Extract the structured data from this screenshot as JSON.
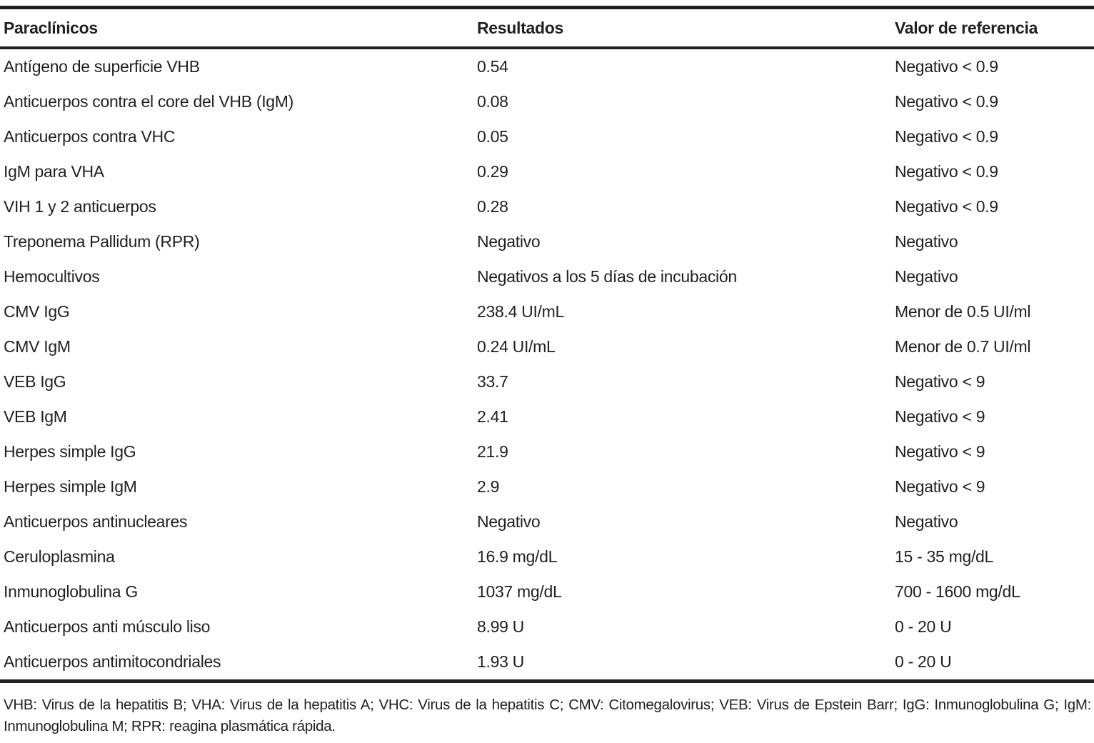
{
  "table": {
    "columns": [
      "Paraclínicos",
      "Resultados",
      "Valor de referencia"
    ],
    "rows": [
      {
        "param": "Antígeno de superficie VHB",
        "result": "0.54",
        "reference": "Negativo < 0.9"
      },
      {
        "param": "Anticuerpos contra el core del VHB (IgM)",
        "result": "0.08",
        "reference": "Negativo < 0.9"
      },
      {
        "param": "Anticuerpos contra VHC",
        "result": "0.05",
        "reference": "Negativo < 0.9"
      },
      {
        "param": "IgM para VHA",
        "result": "0.29",
        "reference": "Negativo < 0.9"
      },
      {
        "param": "VIH 1 y 2 anticuerpos",
        "result": "0.28",
        "reference": "Negativo < 0.9"
      },
      {
        "param": "Treponema Pallidum (RPR)",
        "result": "Negativo",
        "reference": "Negativo"
      },
      {
        "param": "Hemocultivos",
        "result": "Negativos a los 5 días de incubación",
        "reference": "Negativo"
      },
      {
        "param": "CMV IgG",
        "result": "238.4 UI/mL",
        "reference": "Menor de 0.5 UI/ml"
      },
      {
        "param": "CMV IgM",
        "result": "0.24 UI/mL",
        "reference": "Menor de 0.7 UI/ml"
      },
      {
        "param": "VEB IgG",
        "result": "33.7",
        "reference": "Negativo < 9"
      },
      {
        "param": "VEB IgM",
        "result": "2.41",
        "reference": "Negativo < 9"
      },
      {
        "param": "Herpes simple IgG",
        "result": "21.9",
        "reference": "Negativo < 9"
      },
      {
        "param": "Herpes simple IgM",
        "result": "2.9",
        "reference": "Negativo < 9"
      },
      {
        "param": "Anticuerpos antinucleares",
        "result": "Negativo",
        "reference": "Negativo"
      },
      {
        "param": "Ceruloplasmina",
        "result": "16.9 mg/dL",
        "reference": "15 - 35 mg/dL"
      },
      {
        "param": "Inmunoglobulina G",
        "result": "1037 mg/dL",
        "reference": "700 - 1600 mg/dL"
      },
      {
        "param": "Anticuerpos anti músculo liso",
        "result": "8.99 U",
        "reference": "0 - 20 U"
      },
      {
        "param": "Anticuerpos antimitocondriales",
        "result": "1.93 U",
        "reference": "0 - 20 U"
      }
    ]
  },
  "footnote": "VHB: Virus de la hepatitis B; VHA: Virus de la hepatitis A; VHC: Virus de la hepatitis C; CMV: Citomegalovirus; VEB: Virus de Epstein Barr; IgG: Inmunoglobulina G; IgM: Inmunoglobulina M; RPR: reagina plasmática rápida.",
  "colors": {
    "text": "#231f20",
    "rule": "#231f20",
    "background": "#ffffff"
  }
}
